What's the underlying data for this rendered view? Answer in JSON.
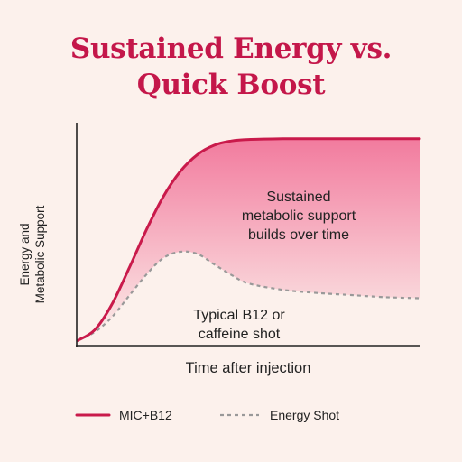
{
  "title_lines": [
    "Sustained Energy vs.",
    "Quick Boost"
  ],
  "colors": {
    "background": "#fcf1ec",
    "title": "#c4174a",
    "primary_series": "#c91a4b",
    "secondary_series": "#999999",
    "fill": "#f06690",
    "axis": "#222222"
  },
  "chart_data": {
    "type": "line",
    "xlabel": "Time after injection",
    "ylabel_lines": [
      "Energy and",
      "Metabolic Support"
    ],
    "xlim": [
      0,
      10
    ],
    "ylim": [
      0,
      10
    ],
    "ticks": "none",
    "grid": false,
    "legend_position": "bottom",
    "series": [
      {
        "name": "MIC+B12",
        "style": "solid",
        "area_fill": true,
        "x": [
          0,
          0.5,
          1,
          1.5,
          2,
          2.5,
          3,
          3.5,
          4,
          4.5,
          5,
          6,
          7,
          8,
          9,
          10
        ],
        "y": [
          0.2,
          0.7,
          1.9,
          3.6,
          5.4,
          7.0,
          8.2,
          9.0,
          9.45,
          9.65,
          9.72,
          9.75,
          9.75,
          9.75,
          9.75,
          9.75
        ]
      },
      {
        "name": "Energy Shot",
        "style": "dashed",
        "x": [
          0,
          0.5,
          1,
          1.5,
          2,
          2.5,
          3,
          3.5,
          4,
          4.5,
          5,
          6,
          7,
          8,
          9,
          10
        ],
        "y": [
          0.2,
          0.6,
          1.3,
          2.3,
          3.3,
          4.1,
          4.4,
          4.3,
          3.8,
          3.3,
          2.9,
          2.6,
          2.45,
          2.35,
          2.25,
          2.2
        ]
      }
    ],
    "annotations": [
      {
        "id": "sustained",
        "lines": [
          "Sustained",
          "metabolic support",
          "builds over time"
        ]
      },
      {
        "id": "typical",
        "lines": [
          "Typical B12 or",
          "caffeine shot"
        ]
      }
    ]
  }
}
